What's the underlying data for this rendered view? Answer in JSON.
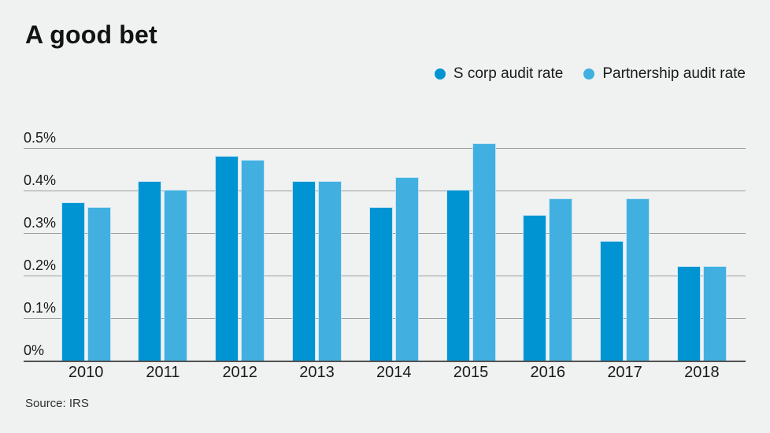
{
  "title": "A good bet",
  "source": "Source: IRS",
  "legend": {
    "items": [
      {
        "label": "S corp audit rate",
        "color": "#0095d2"
      },
      {
        "label": "Partnership audit rate",
        "color": "#41b0e1"
      }
    ]
  },
  "chart_data": {
    "type": "bar",
    "title": "A good bet",
    "categories": [
      "2010",
      "2011",
      "2012",
      "2013",
      "2014",
      "2015",
      "2016",
      "2017",
      "2018"
    ],
    "series": [
      {
        "name": "S corp audit rate",
        "color": "#0095d2",
        "values": [
          0.37,
          0.42,
          0.48,
          0.42,
          0.36,
          0.4,
          0.34,
          0.28,
          0.22
        ]
      },
      {
        "name": "Partnership audit rate",
        "color": "#41b0e1",
        "values": [
          0.36,
          0.4,
          0.47,
          0.42,
          0.43,
          0.51,
          0.38,
          0.38,
          0.22
        ]
      }
    ],
    "xlabel": "",
    "ylabel": "",
    "unit": "%",
    "ylim": [
      0,
      0.5
    ],
    "ytick_values": [
      0,
      0.1,
      0.2,
      0.3,
      0.4,
      0.5
    ],
    "ytick_labels": [
      "0%",
      "0.1%",
      "0.2%",
      "0.3%",
      "0.4%",
      "0.5%"
    ],
    "grid": true,
    "legend_position": "top-right",
    "source": "Source: IRS"
  },
  "colors": {
    "background": "#f0f2f1",
    "gridline": "#9b9da0",
    "baseline": "#515254",
    "text": "#1a1a1a"
  }
}
